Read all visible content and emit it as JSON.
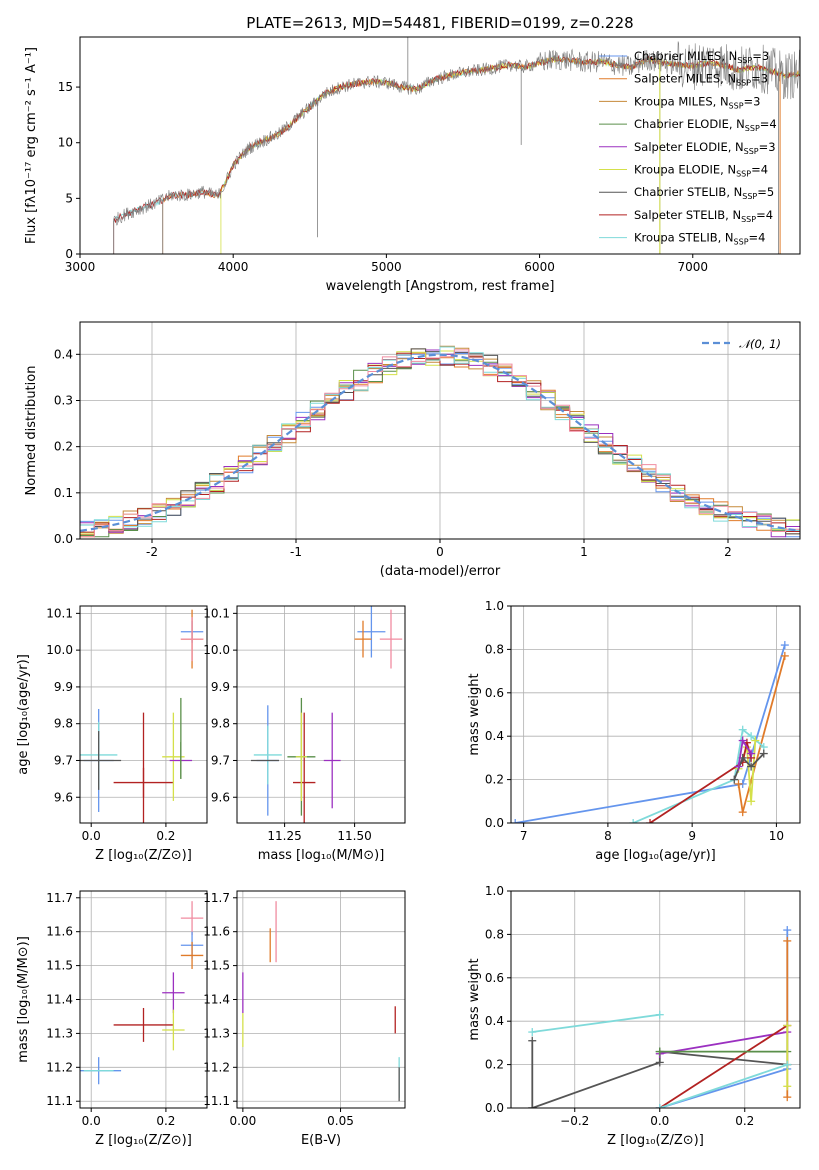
{
  "figure": {
    "title": "PLATE=2613, MJD=54481, FIBERID=0199, z=0.228"
  },
  "colors": {
    "gray": "#7f7f7f",
    "darkgray": "#555555",
    "cmiles": "#6495ed",
    "smiles": "#e07b2a",
    "kmiles": "#c68a3a",
    "celodie": "#5a8f4a",
    "selodie": "#9b30c0",
    "kelodie": "#d4e04a",
    "cstelib": "#555555",
    "sstelib": "#b22222",
    "kstelib": "#7fdada",
    "pink": "#f08ca0",
    "normal": "#5b8fd6"
  },
  "legend": {
    "models": [
      {
        "text": "Chabrier MILES, N",
        "sub": "SSP",
        "suffix": "=3",
        "color": "cmiles"
      },
      {
        "text": "Salpeter MILES, N",
        "sub": "SSP",
        "suffix": "=3",
        "color": "smiles"
      },
      {
        "text": "Kroupa MILES, N",
        "sub": "SSP",
        "suffix": "=3",
        "color": "kmiles"
      },
      {
        "text": "Chabrier ELODIE, N",
        "sub": "SSP",
        "suffix": "=4",
        "color": "celodie"
      },
      {
        "text": "Salpeter ELODIE, N",
        "sub": "SSP",
        "suffix": "=3",
        "color": "selodie"
      },
      {
        "text": "Kroupa ELODIE, N",
        "sub": "SSP",
        "suffix": "=4",
        "color": "kelodie"
      },
      {
        "text": "Chabrier STELIB, N",
        "sub": "SSP",
        "suffix": "=5",
        "color": "cstelib"
      },
      {
        "text": "Salpeter STELIB, N",
        "sub": "SSP",
        "suffix": "=4",
        "color": "sstelib"
      },
      {
        "text": "Kroupa STELIB, N",
        "sub": "SSP",
        "suffix": "=4",
        "color": "kstelib"
      }
    ],
    "normal": "𝒩(0, 1)"
  },
  "chart_data": [
    {
      "id": "spectrum",
      "type": "line",
      "xlabel": "wavelength [Angstrom, rest frame]",
      "ylabel": "Flux [fλ10⁻¹⁷ erg cm⁻² s⁻¹ A⁻¹]",
      "xlim": [
        3000,
        7700
      ],
      "ylim": [
        0,
        19.5
      ],
      "xticks": [
        3000,
        4000,
        5000,
        6000,
        7000
      ],
      "yticks": [
        0,
        5,
        10,
        15
      ],
      "continuum": [
        [
          3220,
          3.0
        ],
        [
          3300,
          3.6
        ],
        [
          3400,
          4.1
        ],
        [
          3500,
          4.6
        ],
        [
          3600,
          5.3
        ],
        [
          3700,
          5.3
        ],
        [
          3800,
          5.6
        ],
        [
          3900,
          5.2
        ],
        [
          3950,
          6.4
        ],
        [
          4000,
          8.0
        ],
        [
          4100,
          9.5
        ],
        [
          4200,
          10.2
        ],
        [
          4300,
          10.8
        ],
        [
          4400,
          12.0
        ],
        [
          4500,
          13.2
        ],
        [
          4600,
          14.4
        ],
        [
          4700,
          15.0
        ],
        [
          4800,
          15.3
        ],
        [
          4900,
          15.5
        ],
        [
          5000,
          15.4
        ],
        [
          5100,
          15.0
        ],
        [
          5200,
          14.8
        ],
        [
          5300,
          15.6
        ],
        [
          5400,
          16.0
        ],
        [
          5500,
          16.3
        ],
        [
          5600,
          16.5
        ],
        [
          5700,
          16.7
        ],
        [
          5800,
          17.0
        ],
        [
          5900,
          16.8
        ],
        [
          6000,
          17.2
        ],
        [
          6100,
          17.5
        ],
        [
          6200,
          17.4
        ],
        [
          6300,
          17.2
        ],
        [
          6400,
          17.3
        ],
        [
          6500,
          17.0
        ],
        [
          6600,
          16.8
        ],
        [
          6700,
          17.5
        ],
        [
          6800,
          17.2
        ],
        [
          6900,
          17.0
        ],
        [
          7000,
          16.9
        ],
        [
          7100,
          17.2
        ],
        [
          7200,
          17.0
        ],
        [
          7300,
          16.5
        ],
        [
          7400,
          16.8
        ],
        [
          7500,
          16.5
        ],
        [
          7600,
          16.0
        ],
        [
          7700,
          16.2
        ]
      ]
    },
    {
      "id": "residuals",
      "type": "histogram",
      "xlabel": "(data-model)/error",
      "ylabel": "Normed distribution",
      "xlim": [
        -2.5,
        2.5
      ],
      "ylim": [
        0,
        0.47
      ],
      "xticks": [
        -2,
        -1,
        0,
        1,
        2
      ],
      "yticks": [
        0.0,
        0.1,
        0.2,
        0.3,
        0.4
      ],
      "bin_width": 0.1
    },
    {
      "id": "age_vs_Z",
      "type": "scatter",
      "xlabel": "Z [log₁₀(Z/Z⊙)]",
      "ylabel": "age  [log₁₀(age/yr)]",
      "xlim": [
        -0.03,
        0.31
      ],
      "ylim": [
        9.53,
        10.12
      ],
      "xticks": [
        0.0,
        0.2
      ],
      "yticks": [
        9.6,
        9.7,
        9.8,
        9.9,
        10.0,
        10.1
      ],
      "points": [
        {
          "x": 0.27,
          "y": 10.05,
          "xerr": 0.03,
          "yerr": 0.03,
          "c": "cmiles"
        },
        {
          "x": 0.27,
          "y": 10.03,
          "xerr": 0.03,
          "yerr": 0.08,
          "c": "smiles"
        },
        {
          "x": 0.27,
          "y": 10.03,
          "xerr": 0.03,
          "yerr": 0.06,
          "c": "pink"
        },
        {
          "x": 0.02,
          "y": 9.7,
          "xerr": 0.04,
          "yerr": 0.14,
          "c": "cmiles"
        },
        {
          "x": 0.02,
          "y": 9.715,
          "xerr": 0.05,
          "yerr": 0.09,
          "c": "kstelib"
        },
        {
          "x": 0.02,
          "y": 9.7,
          "xerr": 0.06,
          "yerr": 0.08,
          "c": "darkgray"
        },
        {
          "x": 0.14,
          "y": 9.64,
          "xerr": 0.08,
          "yerr": 0.04,
          "c": "sstelib"
        },
        {
          "x": 0.14,
          "y": 9.64,
          "xerr": 0.0,
          "yerr": 0.19,
          "c": "sstelib"
        },
        {
          "x": 0.22,
          "y": 9.71,
          "xerr": 0.03,
          "yerr": 0.12,
          "c": "kelodie"
        },
        {
          "x": 0.24,
          "y": 9.7,
          "xerr": 0.03,
          "yerr": 0.0,
          "c": "selodie"
        },
        {
          "x": 0.24,
          "y": 9.7,
          "xerr": 0.0,
          "yerr": 0.05,
          "c": "celodie"
        },
        {
          "x": 0.24,
          "y": 9.76,
          "xerr": 0.0,
          "yerr": 0.11,
          "c": "celodie"
        }
      ]
    },
    {
      "id": "age_vs_mass",
      "type": "scatter",
      "xlabel": "mass [log₁₀(M/M⊙)]",
      "xlim": [
        11.08,
        11.68
      ],
      "ylim": [
        9.53,
        10.12
      ],
      "xticks": [
        11.25,
        11.5
      ],
      "yticks": [
        9.6,
        9.7,
        9.8,
        9.9,
        10.0,
        10.1
      ],
      "points": [
        {
          "x": 11.56,
          "y": 10.05,
          "xerr": 0.05,
          "yerr": 0.07,
          "c": "cmiles"
        },
        {
          "x": 11.53,
          "y": 10.03,
          "xerr": 0.03,
          "yerr": 0.05,
          "c": "smiles"
        },
        {
          "x": 11.63,
          "y": 10.03,
          "xerr": 0.04,
          "yerr": 0.08,
          "c": "pink"
        },
        {
          "x": 11.19,
          "y": 9.7,
          "xerr": 0.04,
          "yerr": 0.15,
          "c": "cmiles"
        },
        {
          "x": 11.19,
          "y": 9.715,
          "xerr": 0.05,
          "yerr": 0.08,
          "c": "kstelib"
        },
        {
          "x": 11.18,
          "y": 9.7,
          "xerr": 0.05,
          "yerr": 0.0,
          "c": "darkgray"
        },
        {
          "x": 11.32,
          "y": 9.64,
          "xerr": 0.04,
          "yerr": 0.19,
          "c": "sstelib"
        },
        {
          "x": 11.31,
          "y": 9.71,
          "xerr": 0.05,
          "yerr": 0.16,
          "c": "celodie"
        },
        {
          "x": 11.42,
          "y": 9.7,
          "xerr": 0.03,
          "yerr": 0.13,
          "c": "selodie"
        },
        {
          "x": 11.31,
          "y": 9.71,
          "xerr": 0.02,
          "yerr": 0.12,
          "c": "kelodie"
        }
      ]
    },
    {
      "id": "weight_vs_age",
      "type": "line",
      "xlabel": "age  [log₁₀(age/yr)]",
      "ylabel": "mass weight",
      "xlim": [
        6.85,
        10.28
      ],
      "ylim": [
        0,
        1.0
      ],
      "xticks": [
        7,
        8,
        9,
        10
      ],
      "yticks": [
        0.0,
        0.2,
        0.4,
        0.6,
        0.8,
        1.0
      ],
      "series": [
        {
          "c": "cmiles",
          "pts": [
            [
              6.9,
              0.0
            ],
            [
              9.6,
              0.18
            ],
            [
              10.1,
              0.82
            ]
          ]
        },
        {
          "c": "smiles",
          "pts": [
            [
              9.55,
              0.18
            ],
            [
              9.6,
              0.05
            ],
            [
              10.1,
              0.77
            ]
          ]
        },
        {
          "c": "kstelib",
          "pts": [
            [
              8.3,
              0.0
            ],
            [
              9.5,
              0.2
            ],
            [
              9.6,
              0.43
            ],
            [
              9.7,
              0.4
            ],
            [
              9.85,
              0.35
            ]
          ]
        },
        {
          "c": "kelodie",
          "pts": [
            [
              9.55,
              0.25
            ],
            [
              9.65,
              0.35
            ],
            [
              9.7,
              0.1
            ],
            [
              9.75,
              0.38
            ]
          ]
        },
        {
          "c": "sstelib",
          "pts": [
            [
              8.5,
              0.0
            ],
            [
              9.6,
              0.28
            ],
            [
              9.65,
              0.37
            ],
            [
              9.7,
              0.3
            ]
          ]
        },
        {
          "c": "darkgray",
          "pts": [
            [
              9.5,
              0.2
            ],
            [
              9.6,
              0.3
            ],
            [
              9.7,
              0.26
            ],
            [
              9.85,
              0.32
            ]
          ]
        },
        {
          "c": "selodie",
          "pts": [
            [
              9.55,
              0.26
            ],
            [
              9.6,
              0.38
            ],
            [
              9.7,
              0.32
            ]
          ]
        }
      ]
    },
    {
      "id": "mass_vs_Z",
      "type": "scatter",
      "xlabel": "Z [log₁₀(Z/Z⊙)]",
      "ylabel": "mass [log₁₀(M/M⊙)]",
      "xlim": [
        -0.03,
        0.31
      ],
      "ylim": [
        11.08,
        11.72
      ],
      "xticks": [
        0.0,
        0.2
      ],
      "yticks": [
        11.1,
        11.2,
        11.3,
        11.4,
        11.5,
        11.6,
        11.7
      ],
      "points": [
        {
          "x": 0.27,
          "y": 11.64,
          "xerr": 0.03,
          "yerr": 0.05,
          "c": "pink"
        },
        {
          "x": 0.27,
          "y": 11.56,
          "xerr": 0.03,
          "yerr": 0.04,
          "c": "cmiles"
        },
        {
          "x": 0.27,
          "y": 11.53,
          "xerr": 0.03,
          "yerr": 0.04,
          "c": "smiles"
        },
        {
          "x": 0.22,
          "y": 11.42,
          "xerr": 0.03,
          "yerr": 0.06,
          "c": "selodie"
        },
        {
          "x": 0.14,
          "y": 11.325,
          "xerr": 0.08,
          "yerr": 0.05,
          "c": "sstelib"
        },
        {
          "x": 0.22,
          "y": 11.31,
          "xerr": 0.03,
          "yerr": 0.06,
          "c": "kelodie"
        },
        {
          "x": 0.02,
          "y": 11.19,
          "xerr": 0.06,
          "yerr": 0.04,
          "c": "cmiles"
        },
        {
          "x": 0.02,
          "y": 11.19,
          "xerr": 0.04,
          "yerr": 0.0,
          "c": "kstelib"
        }
      ]
    },
    {
      "id": "mass_vs_EBV",
      "type": "scatter",
      "xlabel": "E(B-V)",
      "xlim": [
        -0.003,
        0.083
      ],
      "ylim": [
        11.08,
        11.72
      ],
      "xticks": [
        0.0,
        0.05
      ],
      "yticks": [
        11.1,
        11.2,
        11.3,
        11.4,
        11.5,
        11.6,
        11.7
      ],
      "points": [
        {
          "x": 0.017,
          "y": 11.6,
          "xerr": 0.0,
          "yerr": 0.09,
          "c": "pink"
        },
        {
          "x": 0.014,
          "y": 11.56,
          "xerr": 0.0,
          "yerr": 0.05,
          "c": "smiles"
        },
        {
          "x": 0.0,
          "y": 11.42,
          "xerr": 0.0,
          "yerr": 0.06,
          "c": "selodie"
        },
        {
          "x": 0.0,
          "y": 11.31,
          "xerr": 0.0,
          "yerr": 0.05,
          "c": "kelodie"
        },
        {
          "x": 0.078,
          "y": 11.34,
          "xerr": 0.0,
          "yerr": 0.04,
          "c": "sstelib"
        },
        {
          "x": 0.08,
          "y": 11.17,
          "xerr": 0.0,
          "yerr": 0.06,
          "c": "kstelib"
        },
        {
          "x": 0.08,
          "y": 11.15,
          "xerr": 0.0,
          "yerr": 0.05,
          "c": "darkgray"
        }
      ]
    },
    {
      "id": "weight_vs_Z",
      "type": "line",
      "xlabel": "Z [log₁₀(Z/Z⊙)]",
      "ylabel": "mass weight",
      "xlim": [
        -0.35,
        0.33
      ],
      "ylim": [
        0,
        1.0
      ],
      "xticks": [
        -0.2,
        0.0,
        0.2
      ],
      "yticks": [
        0.0,
        0.2,
        0.4,
        0.6,
        0.8,
        1.0
      ],
      "series": [
        {
          "c": "kstelib",
          "pts": [
            [
              -0.3,
              0.35
            ],
            [
              0.0,
              0.43
            ]
          ]
        },
        {
          "c": "darkgray",
          "pts": [
            [
              -0.3,
              0.0
            ],
            [
              -0.3,
              0.31
            ]
          ]
        },
        {
          "c": "darkgray",
          "pts": [
            [
              -0.3,
              0.0
            ],
            [
              0.0,
              0.21
            ],
            [
              0.0,
              0.26
            ],
            [
              0.3,
              0.2
            ]
          ]
        },
        {
          "c": "selodie",
          "pts": [
            [
              0.0,
              0.25
            ],
            [
              0.3,
              0.35
            ]
          ]
        },
        {
          "c": "sstelib",
          "pts": [
            [
              0.0,
              0.0
            ],
            [
              0.3,
              0.38
            ]
          ]
        },
        {
          "c": "celodie",
          "pts": [
            [
              0.0,
              0.26
            ],
            [
              0.3,
              0.26
            ]
          ]
        },
        {
          "c": "cmiles",
          "pts": [
            [
              0.0,
              0.0
            ],
            [
              0.3,
              0.18
            ],
            [
              0.3,
              0.82
            ]
          ]
        },
        {
          "c": "smiles",
          "pts": [
            [
              0.3,
              0.05
            ],
            [
              0.3,
              0.77
            ]
          ]
        },
        {
          "c": "kelodie",
          "pts": [
            [
              0.3,
              0.1
            ],
            [
              0.3,
              0.38
            ]
          ]
        },
        {
          "c": "kstelib",
          "pts": [
            [
              0.0,
              0.0
            ],
            [
              0.3,
              0.2
            ]
          ]
        }
      ]
    }
  ]
}
